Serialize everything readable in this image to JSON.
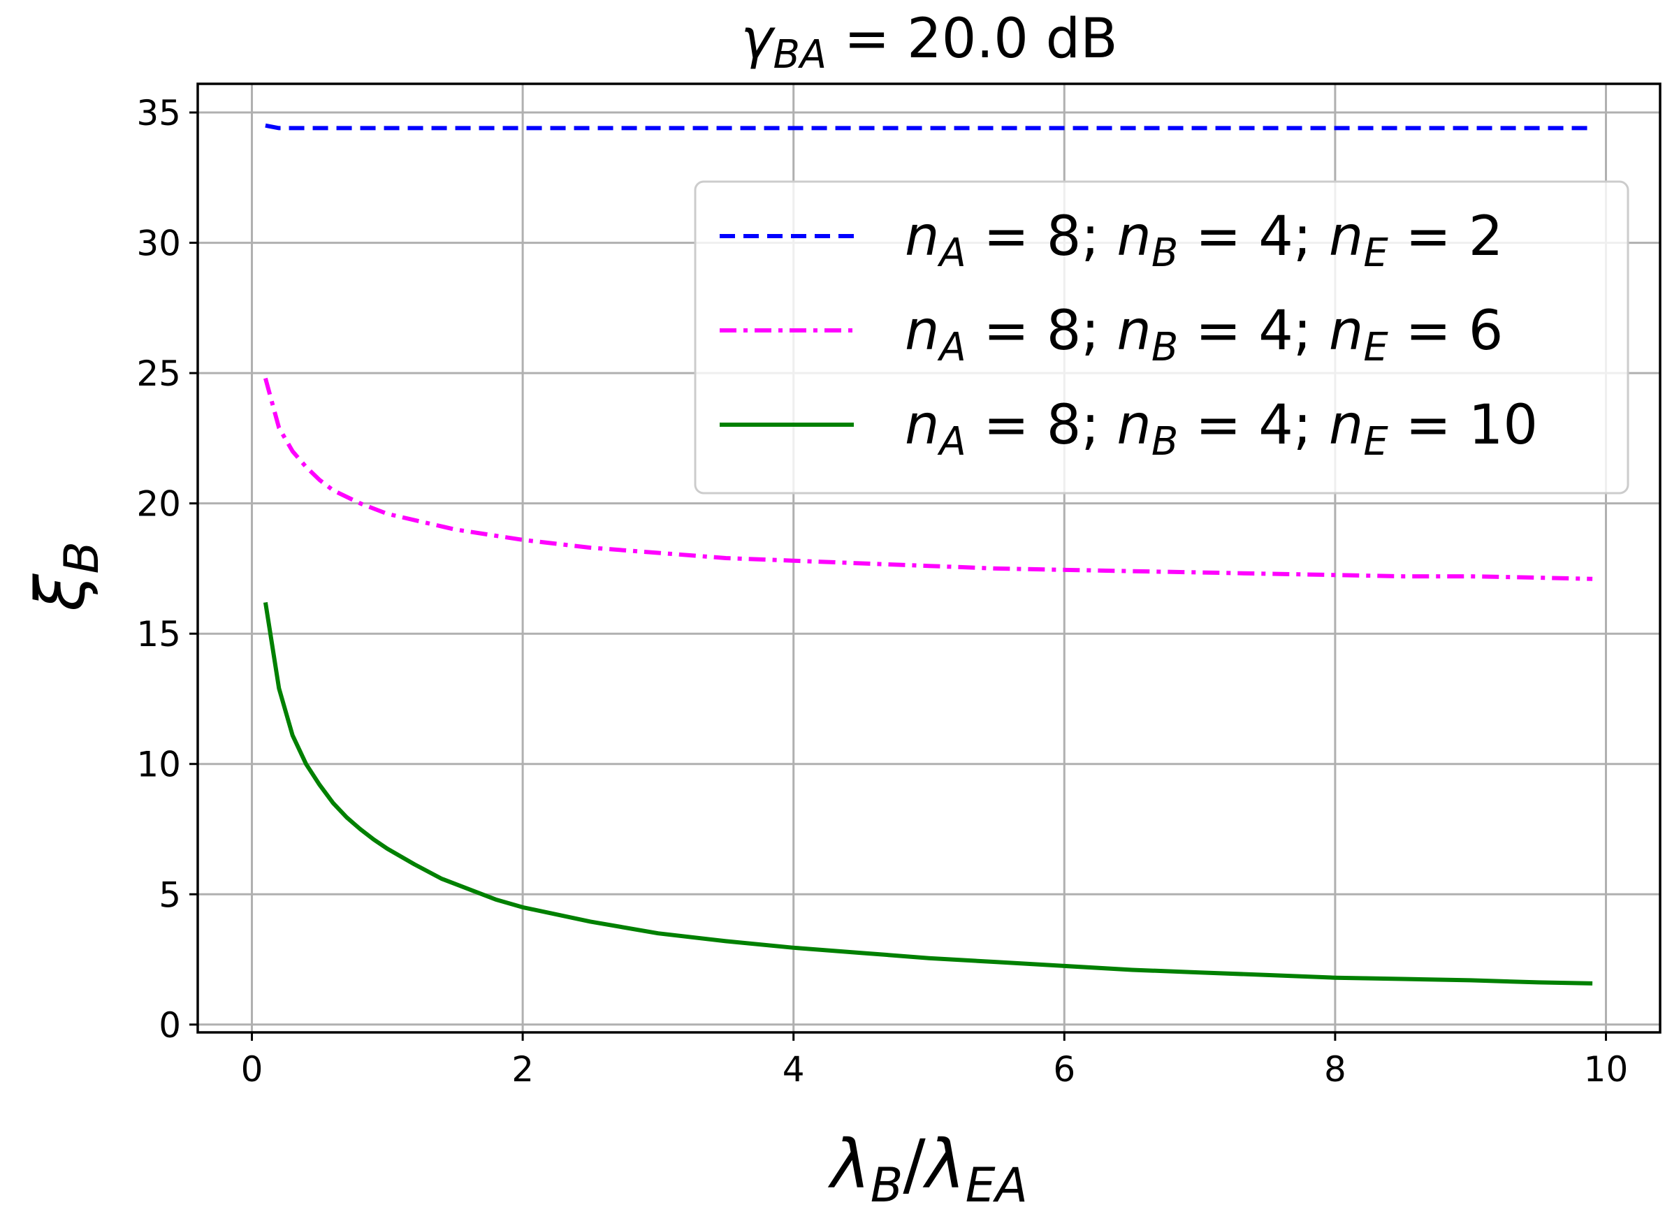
{
  "chart_data": {
    "type": "line",
    "title": {
      "symbol": "γ",
      "sub": "BA",
      "rest": " = 20.0 dB"
    },
    "xlabel": {
      "a": "λ",
      "a_sub": "B",
      "sep": "/",
      "b": "λ",
      "b_sub": "EA"
    },
    "ylabel": {
      "symbol": "ξ",
      "sub": "B"
    },
    "xlim": [
      -0.4,
      10.4
    ],
    "ylim": [
      -0.3,
      36.1
    ],
    "xticks": [
      0,
      2,
      4,
      6,
      8,
      10
    ],
    "yticks": [
      0,
      5,
      10,
      15,
      20,
      25,
      30,
      35
    ],
    "grid": true,
    "legend_position": "upper-right",
    "series": [
      {
        "name": "n_A = 8; n_B = 4; n_E = 2",
        "label": {
          "parts": [
            [
              "n",
              "A",
              " = 8; "
            ],
            [
              "n",
              "B",
              " = 4; "
            ],
            [
              "n",
              "E",
              " = 2"
            ]
          ]
        },
        "color": "#0000ff",
        "dash": "dashed",
        "x": [
          0.1,
          0.2,
          0.4,
          0.6,
          0.8,
          1,
          1.5,
          2,
          2.5,
          3,
          3.5,
          4,
          4.5,
          5,
          5.5,
          6,
          6.5,
          7,
          7.5,
          8,
          8.5,
          9,
          9.5,
          9.9
        ],
        "y": [
          34.5,
          34.4,
          34.4,
          34.4,
          34.4,
          34.4,
          34.4,
          34.4,
          34.4,
          34.4,
          34.4,
          34.4,
          34.4,
          34.4,
          34.4,
          34.4,
          34.4,
          34.4,
          34.4,
          34.4,
          34.4,
          34.4,
          34.4,
          34.4
        ]
      },
      {
        "name": "n_A = 8; n_B = 4; n_E = 6",
        "label": {
          "parts": [
            [
              "n",
              "A",
              " = 8; "
            ],
            [
              "n",
              "B",
              " = 4; "
            ],
            [
              "n",
              "E",
              " = 6"
            ]
          ]
        },
        "color": "#ff00ff",
        "dash": "dashdot",
        "x": [
          0.1,
          0.2,
          0.3,
          0.4,
          0.5,
          0.6,
          0.8,
          1,
          1.5,
          2,
          2.5,
          3,
          3.5,
          4,
          4.5,
          5,
          5.5,
          6,
          6.5,
          7,
          7.5,
          8,
          8.5,
          9,
          9.5,
          9.9
        ],
        "y": [
          24.8,
          22.9,
          22.0,
          21.4,
          20.9,
          20.5,
          20.0,
          19.6,
          19.0,
          18.6,
          18.3,
          18.1,
          17.9,
          17.8,
          17.7,
          17.6,
          17.5,
          17.45,
          17.4,
          17.35,
          17.3,
          17.25,
          17.2,
          17.2,
          17.15,
          17.1
        ]
      },
      {
        "name": "n_A = 8; n_B = 4; n_E = 10",
        "label": {
          "parts": [
            [
              "n",
              "A",
              " = 8; "
            ],
            [
              "n",
              "B",
              " = 4; "
            ],
            [
              "n",
              "E",
              " = 10"
            ]
          ]
        },
        "color": "#008000",
        "dash": "solid",
        "x": [
          0.1,
          0.2,
          0.3,
          0.4,
          0.5,
          0.6,
          0.7,
          0.8,
          0.9,
          1,
          1.2,
          1.4,
          1.6,
          1.8,
          2,
          2.5,
          3,
          3.5,
          4,
          4.5,
          5,
          5.5,
          6,
          6.5,
          7,
          7.5,
          8,
          8.5,
          9,
          9.5,
          9.9
        ],
        "y": [
          16.2,
          12.9,
          11.1,
          10.0,
          9.2,
          8.5,
          7.95,
          7.5,
          7.1,
          6.75,
          6.15,
          5.6,
          5.2,
          4.8,
          4.5,
          3.95,
          3.5,
          3.2,
          2.95,
          2.75,
          2.55,
          2.4,
          2.25,
          2.1,
          2.0,
          1.9,
          1.8,
          1.75,
          1.7,
          1.62,
          1.58
        ]
      }
    ]
  }
}
